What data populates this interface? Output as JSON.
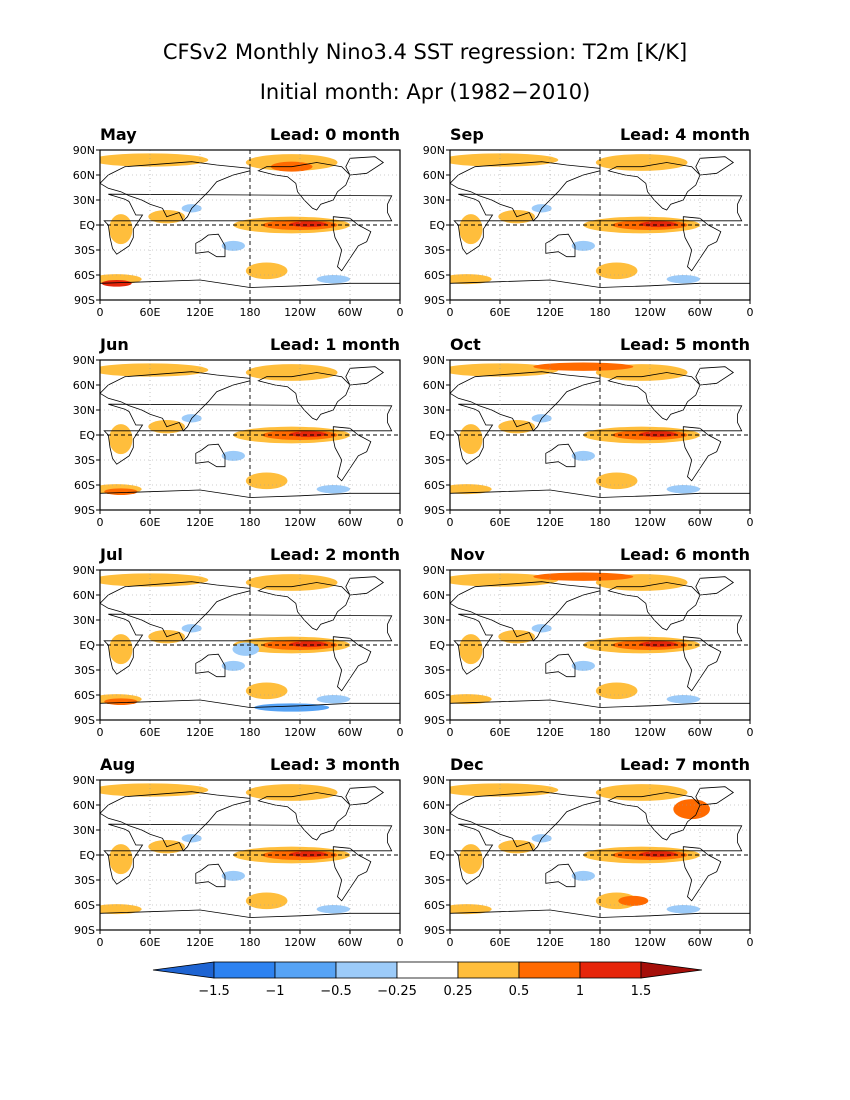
{
  "title": "CFSv2 Monthly Nino3.4 SST regression: T2m [K/K]",
  "subtitle": "Initial month: Apr (1982−2010)",
  "lat_labels": [
    "90N",
    "60N",
    "30N",
    "EQ",
    "30S",
    "60S",
    "90S"
  ],
  "lon_labels": [
    "0",
    "60E",
    "120E",
    "180",
    "120W",
    "60W",
    "0"
  ],
  "panels": [
    {
      "month": "May",
      "lead": "Lead: 0 month",
      "amp": 1.0
    },
    {
      "month": "Sep",
      "lead": "Lead: 4 month",
      "amp": 0.85
    },
    {
      "month": "Jun",
      "lead": "Lead: 1 month",
      "amp": 1.0
    },
    {
      "month": "Oct",
      "lead": "Lead: 5 month",
      "amp": 0.9
    },
    {
      "month": "Jul",
      "lead": "Lead: 2 month",
      "amp": 1.05
    },
    {
      "month": "Nov",
      "lead": "Lead: 6 month",
      "amp": 0.9
    },
    {
      "month": "Aug",
      "lead": "Lead: 3 month",
      "amp": 1.1
    },
    {
      "month": "Dec",
      "lead": "Lead: 7 month",
      "amp": 0.95
    }
  ],
  "colorbar": {
    "labels": [
      "−1.5",
      "−1",
      "−0.5",
      "−0.25",
      "0.25",
      "0.5",
      "1",
      "1.5"
    ],
    "colors": [
      "#1e64d2",
      "#2d82f0",
      "#56a3f5",
      "#9ccbf9",
      "#ffffff",
      "#ffbe3c",
      "#ff6a00",
      "#e6250a",
      "#a50f0a"
    ]
  },
  "colors": {
    "land_outline": "#000000",
    "grid": "#888888"
  }
}
